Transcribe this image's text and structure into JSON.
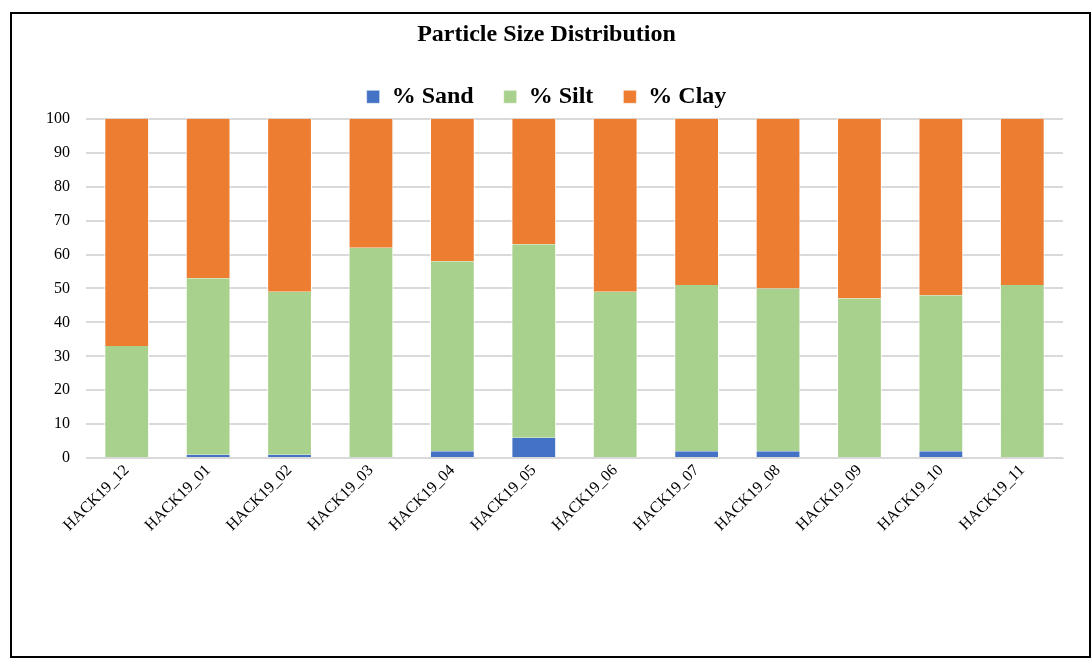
{
  "chart_data": {
    "type": "bar",
    "title": "Particle Size Distribution",
    "stacked": true,
    "legend": "top",
    "grid": "y",
    "categories": [
      "HACK19_12",
      "HACK19_01",
      "HACK19_02",
      "HACK19_03",
      "HACK19_04",
      "HACK19_05",
      "HACK19_06",
      "HACK19_07",
      "HACK19_08",
      "HACK19_09",
      "HACK19_10",
      "HACK19_11"
    ],
    "series": [
      {
        "name": "% Sand",
        "color": "#4472c4",
        "values": [
          0,
          1,
          1,
          0,
          2,
          6,
          0,
          2,
          2,
          0,
          2,
          0
        ]
      },
      {
        "name": "% Silt",
        "color": "#a9d18e",
        "values": [
          33,
          52,
          48,
          62,
          56,
          57,
          49,
          49,
          48,
          47,
          46,
          51
        ]
      },
      {
        "name": "% Clay",
        "color": "#ed7d31",
        "values": [
          67,
          47,
          51,
          38,
          42,
          37,
          51,
          49,
          50,
          53,
          52,
          49
        ]
      }
    ],
    "ylim": [
      0,
      100
    ],
    "yticks": [
      0,
      10,
      20,
      30,
      40,
      50,
      60,
      70,
      80,
      90,
      100
    ]
  }
}
